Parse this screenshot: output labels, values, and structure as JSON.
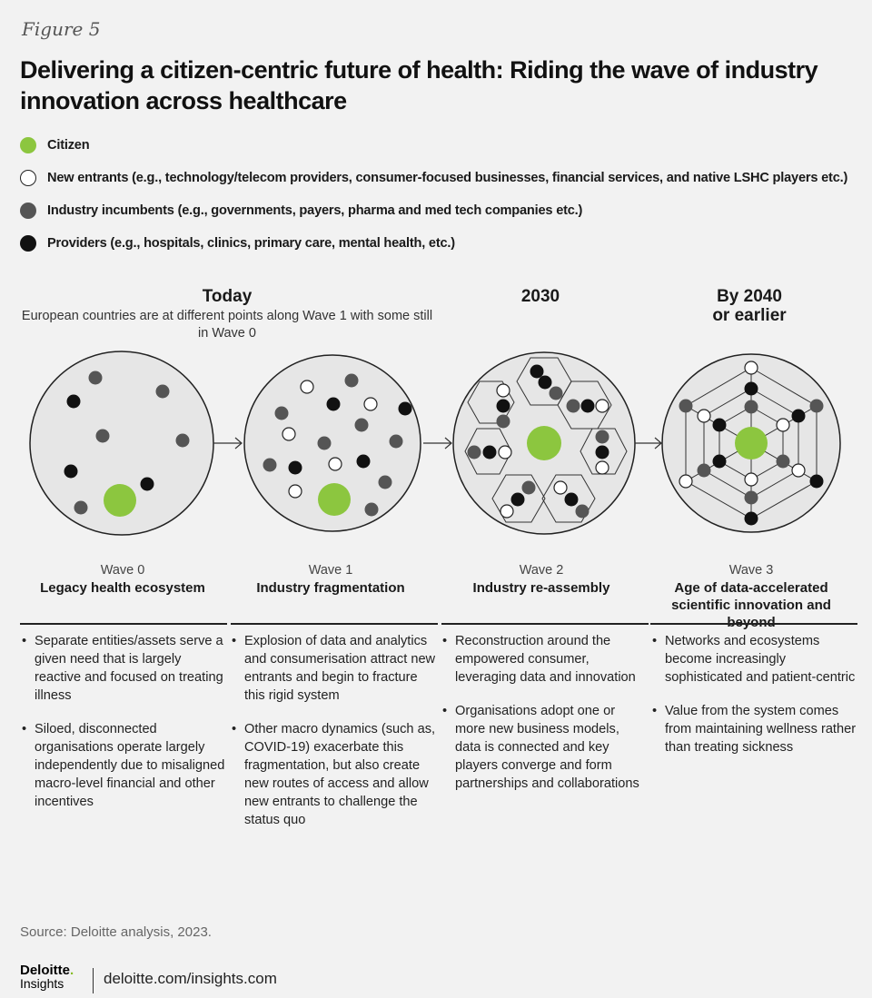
{
  "figure_label": "Figure 5",
  "title": "Delivering a citizen-centric future of health: Riding the  wave of industry innovation across healthcare",
  "legend": [
    {
      "key": "citizen",
      "label": "Citizen",
      "color": "#8cc63f"
    },
    {
      "key": "new",
      "label": "New entrants (e.g., technology/telecom providers, consumer-focused businesses, financial services, and native LSHC players etc.)",
      "color": "#ffffff"
    },
    {
      "key": "inc",
      "label": "Industry incumbents (e.g.,  governments, payers, pharma and med tech companies etc.)",
      "color": "#555555"
    },
    {
      "key": "prov",
      "label": "Providers (e.g., hospitals, clinics, primary care, mental health, etc.)",
      "color": "#111111"
    }
  ],
  "eras": {
    "today": "Today",
    "today_note": "European countries are at different points along Wave 1 with some still in Wave 0",
    "y2030": "2030",
    "y2040_line1": "By 2040",
    "y2040_line2": "or earlier"
  },
  "waves": [
    {
      "num": "Wave 0",
      "name": "Legacy health ecosystem",
      "bullets": [
        "Separate entities/assets serve a given need that is largely reactive and focused on treating illness",
        "Siloed, disconnected organisations operate largely independently due to misaligned macro-level financial and other incentives"
      ]
    },
    {
      "num": "Wave 1",
      "name": "Industry fragmentation",
      "bullets": [
        "Explosion of data and analytics and consumerisation attract new entrants and begin to fracture this rigid system",
        "Other macro dynamics (such as, COVID-19) exacerbate this fragmentation, but also create new routes of access and allow new entrants to challenge the status quo"
      ]
    },
    {
      "num": "Wave 2",
      "name": "Industry re-assembly",
      "bullets": [
        "Reconstruction around the empowered consumer, leveraging data and innovation",
        "Organisations adopt one or more new business models, data is connected and key players converge and form partnerships and collaborations"
      ]
    },
    {
      "num": "Wave 3",
      "name": "Age of data-accelerated scientific innovation and beyond",
      "bullets": [
        "Networks and ecosystems become increasingly sophisticated and patient-centric",
        "Value from the system comes from maintaining wellness rather than treating sickness"
      ]
    }
  ],
  "source": "Source: Deloitte analysis, 2023.",
  "brand": {
    "name": "Deloitte",
    "dot": ".",
    "sub": "Insights",
    "url": "deloitte.com/insights.com"
  }
}
